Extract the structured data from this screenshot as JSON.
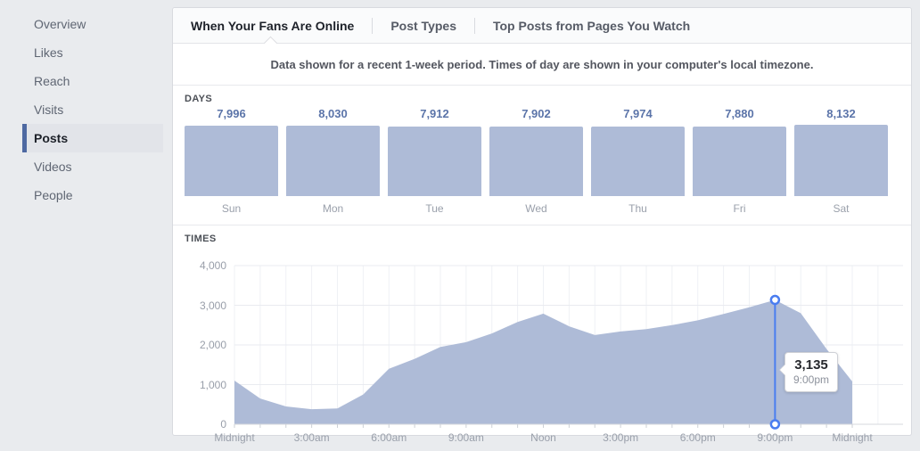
{
  "sidebar": {
    "items": [
      {
        "label": "Overview",
        "selected": false
      },
      {
        "label": "Likes",
        "selected": false
      },
      {
        "label": "Reach",
        "selected": false
      },
      {
        "label": "Visits",
        "selected": false
      },
      {
        "label": "Posts",
        "selected": true
      },
      {
        "label": "Videos",
        "selected": false
      },
      {
        "label": "People",
        "selected": false
      }
    ]
  },
  "tabs": [
    {
      "label": "When Your Fans Are Online",
      "active": true
    },
    {
      "label": "Post Types",
      "active": false
    },
    {
      "label": "Top Posts from Pages You Watch",
      "active": false
    }
  ],
  "info_banner": "Data shown for a recent 1-week period. Times of day are shown in your computer's local timezone.",
  "colors": {
    "area_bar_fill": "#aebbd7",
    "value_text_blue": "#5b74a9",
    "marker_blue": "#4a7df0",
    "sidebar_active_bar": "#4e69a2",
    "page_background": "#e9ebee"
  },
  "chart_data": [
    {
      "type": "bar",
      "section_label": "DAYS",
      "categories": [
        "Sun",
        "Mon",
        "Tue",
        "Wed",
        "Thu",
        "Fri",
        "Sat"
      ],
      "values": [
        7996,
        8030,
        7912,
        7902,
        7974,
        7880,
        8132
      ],
      "value_labels": [
        "7,996",
        "8,030",
        "7,912",
        "7,902",
        "7,974",
        "7,880",
        "8,132"
      ]
    },
    {
      "type": "area",
      "section_label": "TIMES",
      "x_tick_labels": [
        "Midnight",
        "3:00am",
        "6:00am",
        "9:00am",
        "Noon",
        "3:00pm",
        "6:00pm",
        "9:00pm",
        "Midnight"
      ],
      "y_tick_labels": [
        "4,000",
        "3,000",
        "2,000",
        "1,000",
        "0"
      ],
      "ylim": [
        0,
        4000
      ],
      "hours": [
        0,
        1,
        2,
        3,
        4,
        5,
        6,
        7,
        8,
        9,
        10,
        11,
        12,
        13,
        14,
        15,
        16,
        17,
        18,
        19,
        20,
        21,
        22,
        23,
        24
      ],
      "values": [
        1100,
        650,
        450,
        380,
        400,
        750,
        1400,
        1650,
        1950,
        2070,
        2290,
        2580,
        2790,
        2470,
        2250,
        2340,
        2400,
        2500,
        2620,
        2780,
        2950,
        3135,
        2800,
        1900,
        1080
      ],
      "highlight": {
        "hour": 21,
        "value": 3135,
        "value_label": "3,135",
        "time_label": "9:00pm"
      }
    }
  ]
}
